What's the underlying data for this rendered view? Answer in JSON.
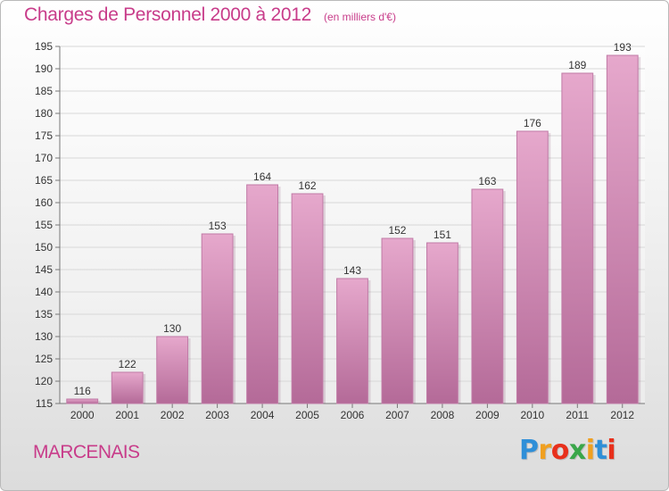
{
  "header": {
    "title": "Charges de Personnel 2000 à 2012",
    "subtitle": "(en milliers d'€)"
  },
  "footer": {
    "place": "MARCENAIS",
    "brand": "Proxiti",
    "brand_colors": [
      "#2f8fd8",
      "#f0a020",
      "#e8301c",
      "#3aa64a",
      "#f0a020",
      "#2f8fd8",
      "#e8301c"
    ]
  },
  "colors": {
    "bar_top": "#e6a8cc",
    "bar_bottom": "#b46a98",
    "accent": "#c83c8a",
    "grid": "#d8d8d8"
  },
  "chart_data": {
    "type": "bar",
    "categories": [
      "2000",
      "2001",
      "2002",
      "2003",
      "2004",
      "2005",
      "2006",
      "2007",
      "2008",
      "2009",
      "2010",
      "2011",
      "2012"
    ],
    "values": [
      116,
      122,
      130,
      153,
      164,
      162,
      143,
      152,
      151,
      163,
      176,
      189,
      193
    ],
    "ylim": [
      115,
      195
    ],
    "yticks": [
      115,
      120,
      125,
      130,
      135,
      140,
      145,
      150,
      155,
      160,
      165,
      170,
      175,
      180,
      185,
      190,
      195
    ],
    "grid": true,
    "data_labels": true
  }
}
